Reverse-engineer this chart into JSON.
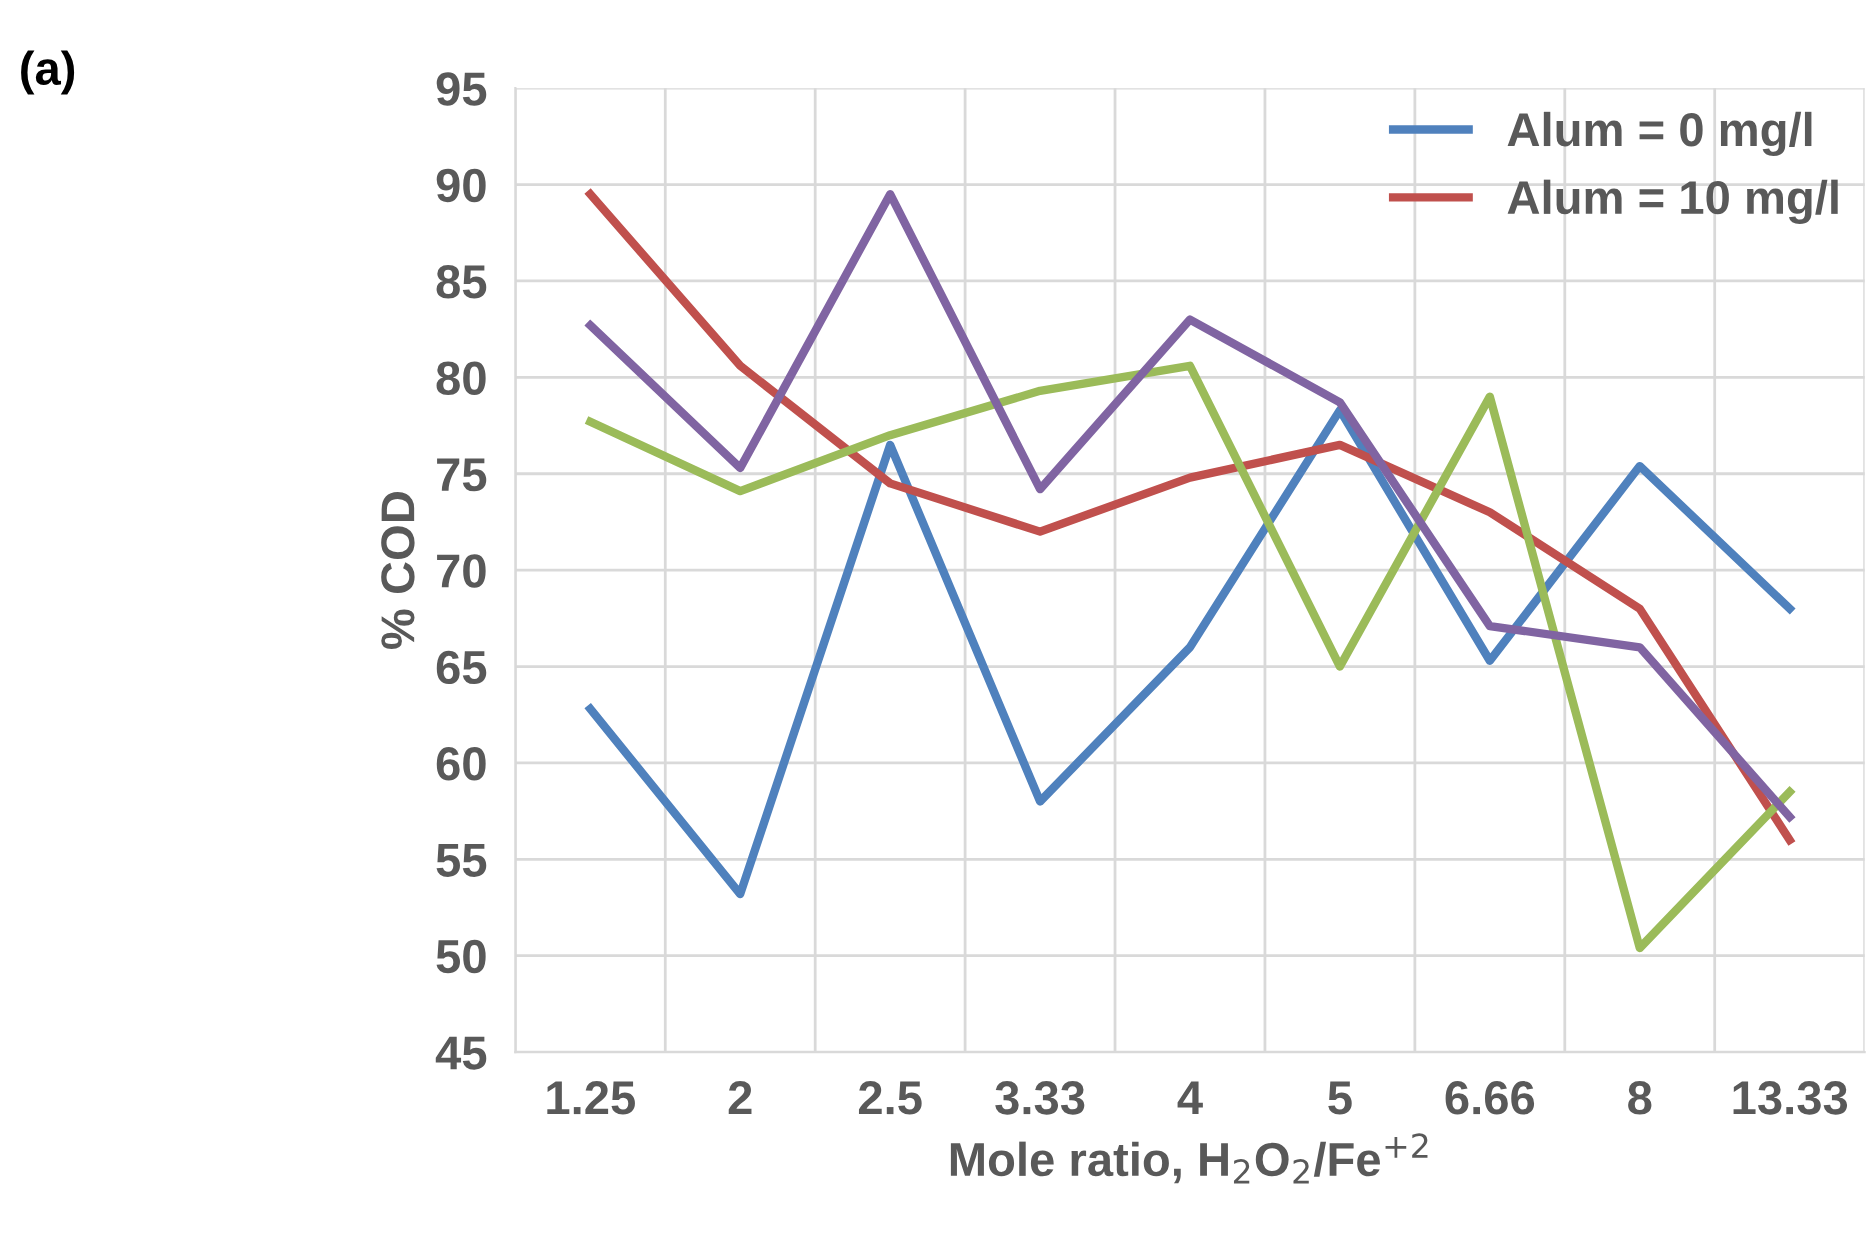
{
  "chart_data": {
    "type": "line",
    "xlabel": "Mole ratio, H$_{2}$O$_{2}$/Fe$^{+2}$",
    "ylabel": "% COD",
    "categories": [
      "1.25",
      "2",
      "2.5",
      "3.33",
      "4",
      "5",
      "6.66",
      "8",
      "13.33"
    ],
    "ylim": [
      45,
      95
    ],
    "yticks": [
      45,
      50,
      55,
      60,
      65,
      70,
      75,
      80,
      85,
      90,
      95
    ],
    "grid": true,
    "legend": "top right",
    "marker": "none",
    "line_style": "solid",
    "annotations": [
      "(a)"
    ],
    "series": [
      {
        "name": "Alum = 0 mg/l",
        "color": "#4f81bd",
        "values": [
          62.8,
          53.2,
          76.5,
          58,
          66,
          78.3,
          65.3,
          75.4,
          68
        ]
      },
      {
        "name": "Alum = 10 mg/l",
        "color": "#c0504d",
        "values": [
          89.5,
          80.6,
          74.5,
          72,
          74.8,
          76.5,
          73,
          68,
          56
        ]
      },
      {
        "color": "#9bbb59",
        "values": [
          77.7,
          74.1,
          77,
          79.3,
          80.6,
          65,
          79,
          50.4,
          58.5
        ]
      },
      {
        "color": "#8064a2",
        "values": [
          82.7,
          75.3,
          89.5,
          74.2,
          83,
          78.7,
          67.1,
          66,
          57.2
        ]
      }
    ]
  }
}
